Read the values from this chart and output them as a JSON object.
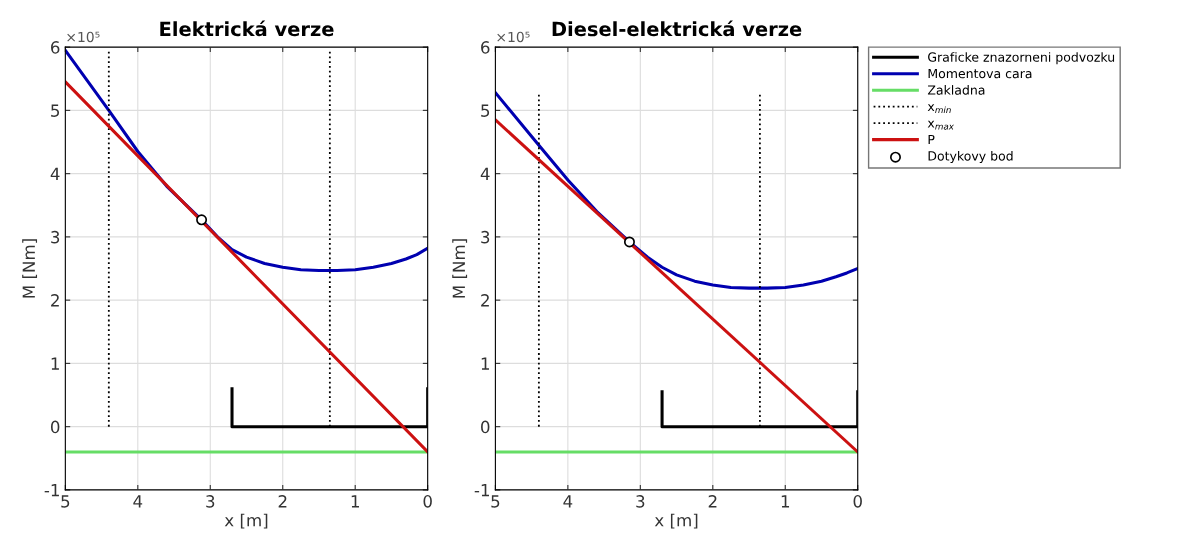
{
  "chart_data": [
    {
      "type": "line",
      "title": "Elektrická verze",
      "xlabel": "x [m]",
      "ylabel": "M [Nm]",
      "annotations": [
        "×10⁵"
      ],
      "xlim": [
        5,
        0
      ],
      "xticks": [
        0,
        1,
        2,
        3,
        4,
        5
      ],
      "ylim": [
        -1,
        6
      ],
      "yticks": [
        -1,
        0,
        1,
        2,
        3,
        4,
        5,
        6
      ],
      "grid": true,
      "legend": false,
      "series": [
        {
          "color": "#000000",
          "x": [
            2.7,
            2.7,
            0,
            0
          ],
          "values": [
            0.6,
            0,
            0,
            0.6
          ]
        },
        {
          "color": "#0000b0",
          "x": [
            5,
            4.4,
            4,
            3.6,
            3.12,
            2.9,
            2.7,
            2.5,
            2.25,
            2,
            1.75,
            1.5,
            1.25,
            1,
            0.75,
            0.5,
            0.3,
            0.15,
            0
          ],
          "values": [
            5.95,
            5.0,
            4.35,
            3.8,
            3.27,
            3.0,
            2.8,
            2.68,
            2.58,
            2.52,
            2.48,
            2.47,
            2.47,
            2.48,
            2.52,
            2.58,
            2.65,
            2.72,
            2.82
          ]
        },
        {
          "color": "#66dd66",
          "x": [
            5,
            0
          ],
          "values": [
            -0.4,
            -0.4
          ]
        },
        {
          "color": "#000000",
          "line_style": "dotted",
          "x": [
            4.4,
            4.4
          ],
          "values": [
            0,
            5.95
          ]
        },
        {
          "color": "#000000",
          "line_style": "dotted",
          "x": [
            1.35,
            1.35
          ],
          "values": [
            0,
            5.95
          ]
        },
        {
          "color": "#cc1111",
          "x": [
            5,
            0
          ],
          "values": [
            5.45,
            -0.4
          ]
        },
        {
          "type": "scatter",
          "color": "#000000",
          "marker": "circle",
          "x": [
            3.12
          ],
          "values": [
            3.27
          ]
        }
      ]
    },
    {
      "type": "line",
      "title": "Diesel-elektrická verze",
      "xlabel": "x [m]",
      "ylabel": "M [Nm]",
      "annotations": [
        "×10⁵"
      ],
      "xlim": [
        5,
        0
      ],
      "xticks": [
        0,
        1,
        2,
        3,
        4,
        5
      ],
      "ylim": [
        -1,
        6
      ],
      "yticks": [
        -1,
        0,
        1,
        2,
        3,
        4,
        5,
        6
      ],
      "grid": true,
      "legend": "right",
      "series": [
        {
          "name": "Graficke znazorneni podvozku",
          "color": "#000000",
          "x": [
            2.7,
            2.7,
            0,
            0
          ],
          "values": [
            0.55,
            0,
            0,
            0.55
          ]
        },
        {
          "name": "Momentova cara",
          "color": "#0000b0",
          "x": [
            5,
            4.4,
            4,
            3.6,
            3.15,
            2.9,
            2.7,
            2.5,
            2.25,
            2,
            1.75,
            1.5,
            1.25,
            1,
            0.75,
            0.5,
            0.3,
            0.15,
            0
          ],
          "values": [
            5.28,
            4.45,
            3.9,
            3.4,
            2.92,
            2.68,
            2.52,
            2.4,
            2.3,
            2.24,
            2.2,
            2.19,
            2.19,
            2.2,
            2.24,
            2.3,
            2.37,
            2.43,
            2.5
          ]
        },
        {
          "name": "Zakladna",
          "color": "#66dd66",
          "x": [
            5,
            0
          ],
          "values": [
            -0.4,
            -0.4
          ]
        },
        {
          "name": "x$_{min}$",
          "color": "#000000",
          "line_style": "dotted",
          "x": [
            4.4,
            4.4
          ],
          "values": [
            0,
            5.28
          ]
        },
        {
          "name": "x$_{max}$",
          "color": "#000000",
          "line_style": "dotted",
          "x": [
            1.35,
            1.35
          ],
          "values": [
            0,
            5.28
          ]
        },
        {
          "name": "P",
          "color": "#cc1111",
          "x": [
            5,
            0
          ],
          "values": [
            4.85,
            -0.4
          ]
        },
        {
          "type": "scatter",
          "name": "Dotykovy bod",
          "color": "#000000",
          "marker": "circle",
          "x": [
            3.15
          ],
          "values": [
            2.92
          ]
        }
      ]
    }
  ]
}
